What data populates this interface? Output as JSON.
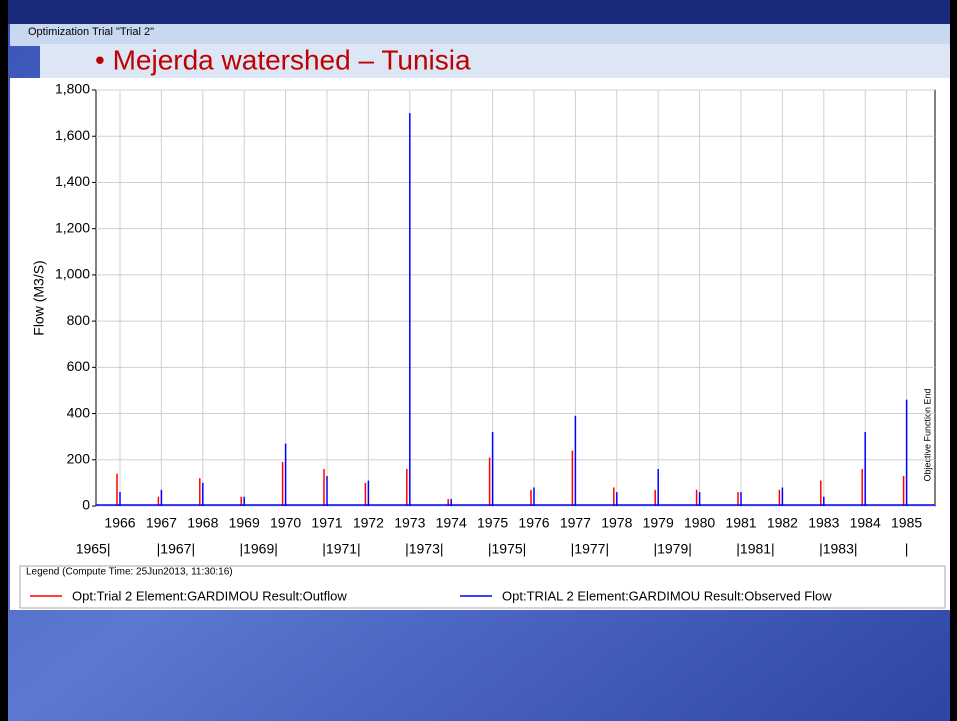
{
  "window_title": "Optimization Trial \"Trial 2\"",
  "slide_title": "•  Mejerda watershed – Tunisia",
  "chart_data": {
    "type": "line",
    "y_label": "Flow (M3/S)",
    "categories": [
      "1966",
      "1967",
      "1968",
      "1969",
      "1970",
      "1971",
      "1972",
      "1973",
      "1974",
      "1975",
      "1976",
      "1977",
      "1978",
      "1979",
      "1980",
      "1981",
      "1982",
      "1983",
      "1984",
      "1985"
    ],
    "x2_labels": [
      "1965|",
      "|1967|",
      "|1969|",
      "|1971|",
      "|1973|",
      "|1975|",
      "|1977|",
      "|1979|",
      "|1981|",
      "|1983|",
      "|"
    ],
    "series": [
      {
        "name": "Opt:Trial 2 Element:GARDIMOU Result:Outflow",
        "color": "#ff0000",
        "values": [
          140,
          40,
          120,
          40,
          190,
          160,
          100,
          160,
          30,
          210,
          70,
          240,
          80,
          70,
          70,
          60,
          70,
          110,
          160,
          130
        ]
      },
      {
        "name": "Opt:TRIAL 2 Element:GARDIMOU Result:Observed Flow",
        "color": "#0000ff",
        "values": [
          60,
          70,
          100,
          40,
          270,
          130,
          110,
          1700,
          30,
          320,
          80,
          390,
          60,
          160,
          60,
          60,
          80,
          40,
          320,
          460
        ]
      }
    ],
    "ylim": [
      0,
      1800
    ],
    "yticks": [
      0,
      200,
      400,
      600,
      800,
      {
        "value": 1000,
        "label": "1,000"
      },
      {
        "value": 1200,
        "label": "1,200"
      },
      {
        "value": 1400,
        "label": "1,400"
      },
      {
        "value": 1600,
        "label": "1,600"
      },
      {
        "value": 1800,
        "label": "1,800"
      }
    ],
    "grid": true,
    "annotation": "Objective Function End",
    "legend_title": "Legend (Compute Time: 25Jun2013, 11:30:16)"
  }
}
